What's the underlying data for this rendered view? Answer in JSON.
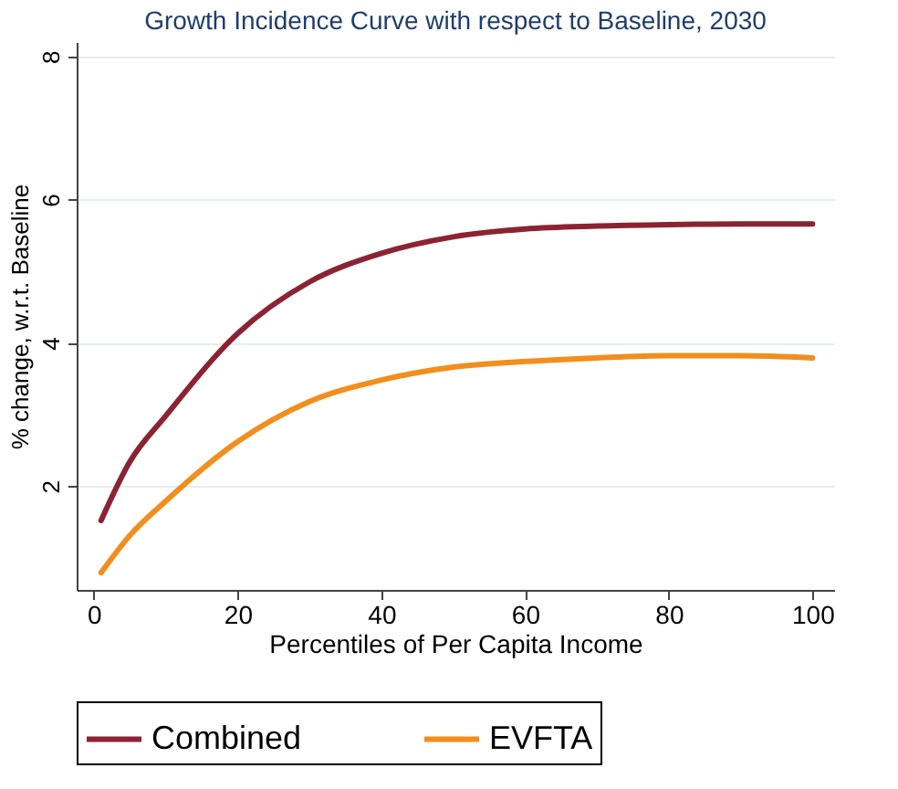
{
  "chart_data": {
    "type": "line",
    "title": "Growth Incidence Curve with respect to Baseline, 2030",
    "xlabel": "Percentiles of Per Capita Income",
    "ylabel": "% change, w.r.t. Baseline",
    "x": [
      1,
      5,
      10,
      20,
      30,
      40,
      50,
      60,
      70,
      80,
      90,
      100
    ],
    "series": [
      {
        "name": "Combined",
        "color": "#8b2332",
        "values": [
          1.52,
          2.34,
          2.98,
          4.13,
          4.85,
          5.25,
          5.48,
          5.59,
          5.63,
          5.65,
          5.66,
          5.66
        ]
      },
      {
        "name": "EVFTA",
        "color": "#f28e1c",
        "values": [
          0.79,
          1.31,
          1.79,
          2.62,
          3.18,
          3.48,
          3.66,
          3.74,
          3.79,
          3.82,
          3.82,
          3.79
        ]
      }
    ],
    "xlim": [
      -2.4,
      103
    ],
    "xticks": [
      0,
      20,
      40,
      60,
      80,
      100
    ],
    "ylim": [
      0.55,
      8.2
    ],
    "yticks": [
      2,
      4,
      6,
      8
    ],
    "grid": "y",
    "legend": "bottom",
    "marker": "none",
    "line_style": "solid"
  }
}
